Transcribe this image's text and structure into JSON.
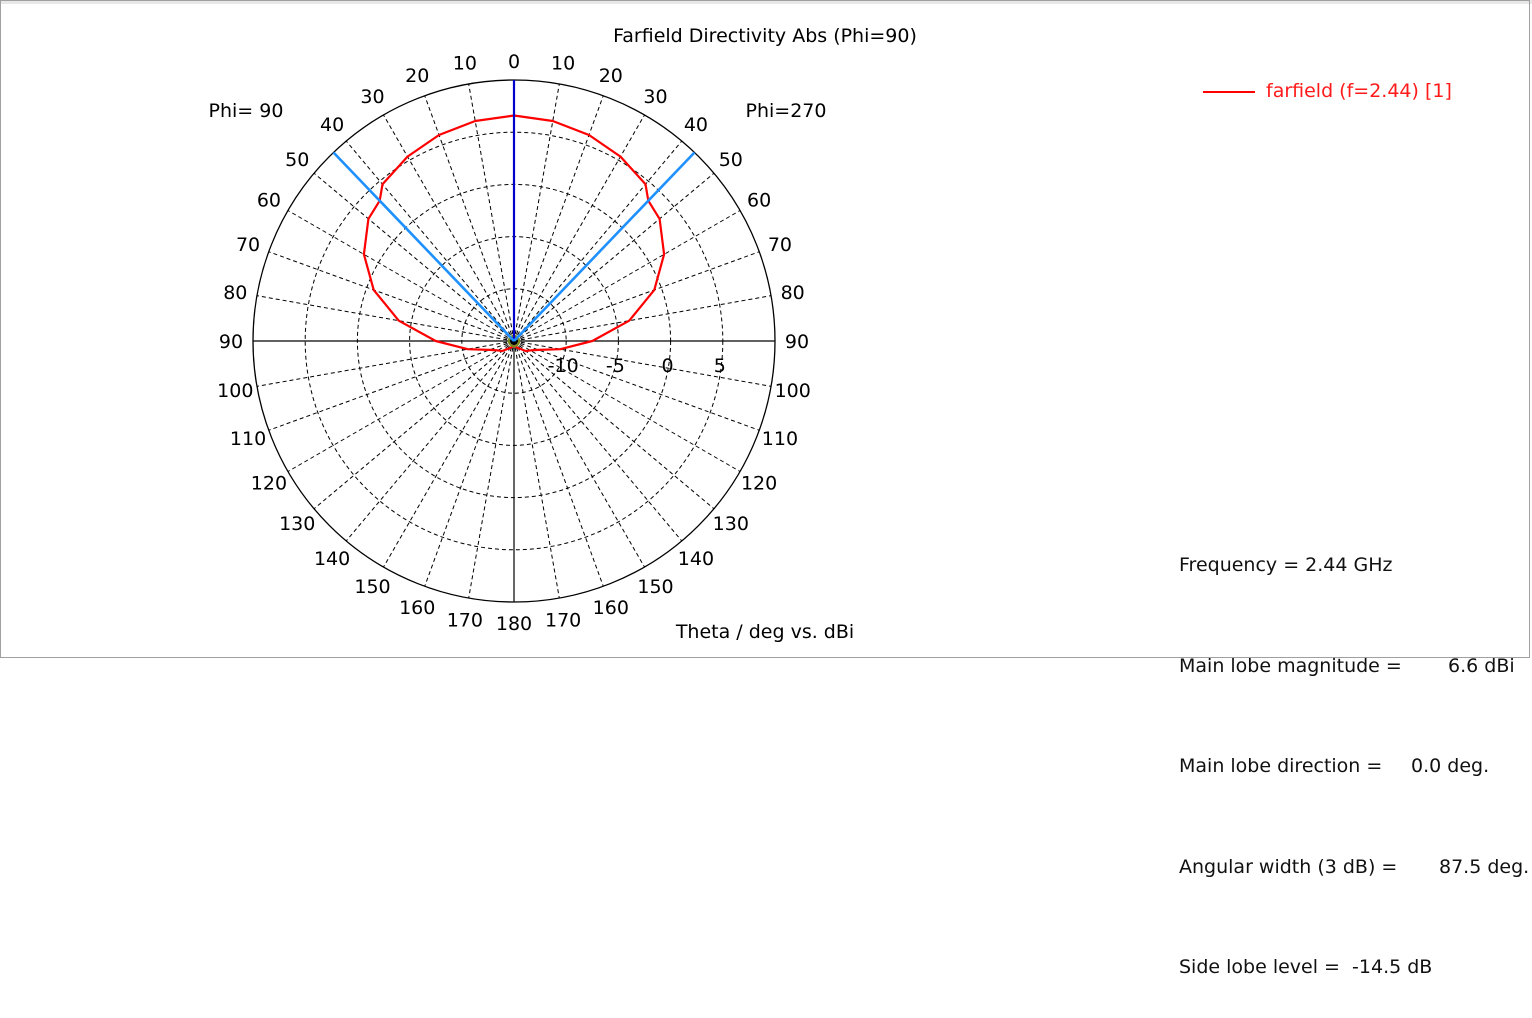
{
  "chart_data": {
    "type": "polar",
    "title": "Farfield Directivity Abs (Phi=90)",
    "axis_label": "Theta / deg vs. dBi",
    "left_half_label": "Phi= 90",
    "right_half_label": "Phi=270",
    "theta_ticks": [
      "0",
      "10",
      "20",
      "30",
      "40",
      "50",
      "60",
      "70",
      "80",
      "90",
      "100",
      "110",
      "120",
      "130",
      "140",
      "150",
      "160",
      "170",
      "180"
    ],
    "radial_ticks": [
      -10,
      -5,
      0,
      5
    ],
    "radial_range_dbi": [
      -15,
      10
    ],
    "grid": true,
    "series": [
      {
        "name": "farfield (f=2.44) [1]",
        "color": "#ff0000",
        "points_theta_deg_dbi": [
          [
            0,
            6.6
          ],
          [
            10,
            6.4
          ],
          [
            20,
            6.0
          ],
          [
            30,
            5.4
          ],
          [
            40,
            4.6
          ],
          [
            43.75,
            3.6
          ],
          [
            50,
            3.2
          ],
          [
            60,
            1.6
          ],
          [
            70,
            -0.7
          ],
          [
            80,
            -3.8
          ],
          [
            90,
            -7.5
          ],
          [
            100,
            -10.5
          ],
          [
            110,
            -12.5
          ],
          [
            120,
            -13.2
          ],
          [
            130,
            -13.5
          ],
          [
            140,
            -14.0
          ],
          [
            150,
            -14.2
          ],
          [
            160,
            -14.4
          ],
          [
            170,
            -14.5
          ],
          [
            180,
            -14.5
          ]
        ]
      }
    ],
    "markers": {
      "main_lobe_direction_deg": 0.0,
      "beamwidth_3db_edges_deg": [
        -43.75,
        43.75
      ],
      "side_lobe_circle_dbi": -14.5
    }
  },
  "legend": {
    "label": "farfield (f=2.44) [1]",
    "color": "#ff0000"
  },
  "info": {
    "frequency": "Frequency = 2.44 GHz",
    "main_lobe_magnitude_label": "Main lobe magnitude =",
    "main_lobe_magnitude_value": "6.6 dBi",
    "main_lobe_direction_label": "Main lobe direction =",
    "main_lobe_direction_value": "0.0 deg.",
    "angular_width_label": "Angular width (3 dB) =",
    "angular_width_value": "87.5 deg.",
    "side_lobe_level": "Side lobe level =  -14.5 dB"
  },
  "colors": {
    "pattern": "#ff0000",
    "beam_lines": "#1e90ff",
    "main_dir": "#0000cc",
    "side_lobe": "#7a8a1a"
  }
}
